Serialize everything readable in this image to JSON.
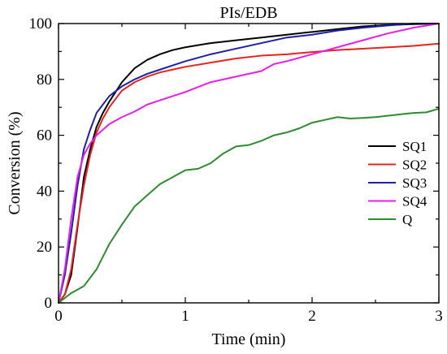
{
  "chart_data": {
    "type": "line",
    "title": "PIs/EDB",
    "xlabel": "Time (min)",
    "ylabel": "Conversion (%)",
    "xlim": [
      0,
      3
    ],
    "ylim": [
      0,
      100
    ],
    "xticks": [
      0,
      1,
      2,
      3
    ],
    "yticks": [
      0,
      20,
      40,
      60,
      80,
      100
    ],
    "xtick_labels": [
      "0",
      "1",
      "2",
      "3"
    ],
    "ytick_labels": [
      "0",
      "20",
      "40",
      "60",
      "80",
      "100"
    ],
    "legend_position": "right",
    "grid": false,
    "series": [
      {
        "name": "SQ1",
        "color": "#000000",
        "x": [
          0,
          0.05,
          0.1,
          0.15,
          0.2,
          0.25,
          0.3,
          0.35,
          0.4,
          0.5,
          0.6,
          0.7,
          0.8,
          0.9,
          1.0,
          1.2,
          1.4,
          1.6,
          1.8,
          2.0,
          2.2,
          2.4,
          2.6,
          2.8,
          3.0
        ],
        "y": [
          0,
          3,
          10,
          27,
          45,
          55,
          63,
          68,
          72,
          79,
          84,
          87,
          89,
          90.5,
          91.5,
          93,
          94,
          95,
          96,
          97,
          98,
          99,
          99.5,
          99.8,
          100
        ]
      },
      {
        "name": "SQ2",
        "color": "#e8221c",
        "x": [
          0,
          0.05,
          0.1,
          0.15,
          0.2,
          0.25,
          0.3,
          0.35,
          0.4,
          0.5,
          0.6,
          0.7,
          0.8,
          0.9,
          1.0,
          1.2,
          1.4,
          1.6,
          1.8,
          2.0,
          2.2,
          2.4,
          2.6,
          2.8,
          3.0
        ],
        "y": [
          0,
          3,
          12,
          28,
          42,
          53,
          61,
          66,
          70,
          76,
          79,
          81,
          82.5,
          83.5,
          84.5,
          86,
          87.5,
          88.5,
          89,
          89.8,
          90.5,
          91,
          91.5,
          92,
          92.8
        ]
      },
      {
        "name": "SQ3",
        "color": "#1f1fa8",
        "x": [
          0,
          0.05,
          0.1,
          0.15,
          0.2,
          0.25,
          0.3,
          0.35,
          0.4,
          0.5,
          0.6,
          0.7,
          0.8,
          0.9,
          1.0,
          1.2,
          1.4,
          1.6,
          1.8,
          2.0,
          2.2,
          2.4,
          2.6,
          2.8,
          3.0
        ],
        "y": [
          0,
          10,
          25,
          42,
          55,
          62,
          68,
          71,
          74,
          77.5,
          80,
          82,
          83.5,
          85,
          86.5,
          89,
          91,
          93,
          95,
          96,
          97.5,
          98.5,
          99.3,
          100,
          100
        ]
      },
      {
        "name": "SQ4",
        "color": "#e61ee6",
        "x": [
          0,
          0.05,
          0.1,
          0.15,
          0.2,
          0.25,
          0.3,
          0.35,
          0.4,
          0.5,
          0.6,
          0.7,
          0.8,
          0.9,
          1.0,
          1.2,
          1.4,
          1.6,
          1.7,
          1.8,
          2.0,
          2.2,
          2.4,
          2.6,
          2.8,
          3.0
        ],
        "y": [
          0,
          12,
          30,
          45,
          53,
          57,
          60,
          62,
          64,
          66.5,
          68.5,
          71,
          72.5,
          74,
          75.5,
          79,
          81,
          83,
          85.5,
          86.5,
          89,
          91.5,
          94,
          96.5,
          98.5,
          100
        ]
      },
      {
        "name": "Q",
        "color": "#2e8b2e",
        "x": [
          0,
          0.1,
          0.2,
          0.3,
          0.4,
          0.5,
          0.6,
          0.7,
          0.8,
          0.9,
          1.0,
          1.1,
          1.2,
          1.3,
          1.4,
          1.5,
          1.6,
          1.7,
          1.8,
          1.9,
          2.0,
          2.1,
          2.2,
          2.3,
          2.4,
          2.5,
          2.6,
          2.7,
          2.8,
          2.9,
          3.0
        ],
        "y": [
          0,
          3.5,
          6,
          12,
          21,
          28,
          34.5,
          38.5,
          42.5,
          45,
          47.5,
          48,
          50,
          53.5,
          56,
          56.5,
          58,
          60,
          61,
          62.5,
          64.5,
          65.5,
          66.5,
          66,
          66.2,
          66.5,
          67,
          67.5,
          68,
          68.2,
          69.5
        ]
      }
    ]
  }
}
